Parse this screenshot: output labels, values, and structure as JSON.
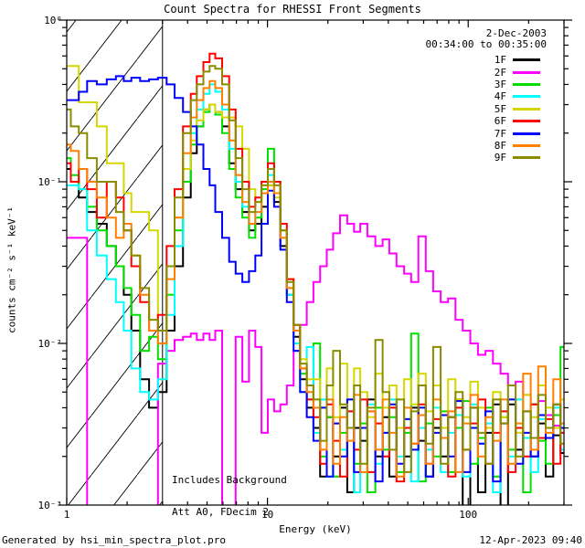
{
  "footer": {
    "left": "Generated by hsi_min_spectra_plot.pro",
    "right": "12-Apr-2023 09:40"
  },
  "chart_data": {
    "type": "line",
    "title": "Count Spectra for RHESSI Front Segments",
    "date_label": "2-Dec-2003",
    "time_range_label": "00:34:00 to 00:35:00",
    "xlabel": "Energy (keV)",
    "ylabel": "counts cm⁻² s⁻¹ keV⁻¹",
    "xscale": "log",
    "yscale": "log",
    "xlim": [
      1,
      300
    ],
    "ylim": [
      0.001,
      1
    ],
    "grid": false,
    "legend_position": "top-right",
    "annotations": [
      "Includes Background",
      "Att A0, FDecim 2"
    ],
    "hatched_region_keV": [
      1,
      3
    ],
    "x_tick_labels": [
      {
        "value": 1,
        "label": "1"
      },
      {
        "value": 10,
        "label": "10"
      },
      {
        "value": 100,
        "label": "100"
      }
    ],
    "y_tick_labels": [
      {
        "value": 1,
        "label": "10⁰"
      },
      {
        "value": 0.1,
        "label": "10⁻¹"
      },
      {
        "value": 0.01,
        "label": "10⁻²"
      },
      {
        "value": 0.001,
        "label": "10⁻³"
      }
    ],
    "energies_keV": [
      1.0,
      1.1,
      1.2,
      1.33,
      1.5,
      1.67,
      1.85,
      2.0,
      2.2,
      2.45,
      2.7,
      3.0,
      3.3,
      3.6,
      4.0,
      4.3,
      4.6,
      5.0,
      5.3,
      5.7,
      6.2,
      6.7,
      7.2,
      7.8,
      8.4,
      9.0,
      9.7,
      10.4,
      11.2,
      12.0,
      13.0,
      14.0,
      15.1,
      16.3,
      17.6,
      19,
      20.5,
      22,
      24,
      26,
      28,
      30,
      33,
      36,
      39,
      42,
      46,
      50,
      54,
      59,
      64,
      70,
      76,
      83,
      90,
      98,
      107,
      117,
      127,
      139,
      151,
      165,
      180,
      196,
      214,
      233,
      254,
      277,
      300
    ],
    "series": [
      {
        "name": "1F",
        "color": "#000000",
        "values": [
          0.12,
          0.1,
          0.08,
          0.065,
          0.055,
          0.04,
          0.03,
          0.02,
          0.012,
          0.006,
          0.004,
          0.005,
          0.012,
          0.03,
          0.08,
          0.15,
          0.22,
          0.28,
          0.3,
          0.27,
          0.22,
          0.13,
          0.09,
          0.065,
          0.05,
          0.055,
          0.07,
          0.095,
          0.075,
          0.04,
          0.02,
          0.011,
          0.006,
          0.004,
          0.003,
          0.0015,
          0.0035,
          0.002,
          0.004,
          0.0012,
          0.003,
          0.0025,
          0.0045,
          0.002,
          0.0035,
          0.0015,
          0.003,
          0.002,
          0.004,
          0.0025,
          0.0015,
          0.003,
          0.002,
          0.0035,
          0.0045,
          0.0007,
          0.004,
          0.0012,
          0.0028,
          0.0042,
          0.0008,
          0.0042,
          0.0022,
          0.0038,
          0.002,
          0.0032,
          0.0015,
          0.0027,
          0.0021
        ]
      },
      {
        "name": "2F",
        "color": "#FF00FF",
        "values": [
          0.045,
          0.045,
          0.045,
          0.0005,
          0.0005,
          0.0005,
          0.0005,
          0.0005,
          0.0005,
          0.0005,
          0.0005,
          0.0075,
          0.009,
          0.0105,
          0.011,
          0.0115,
          0.0105,
          0.0115,
          0.0105,
          0.012,
          0.0008,
          0.0009,
          0.011,
          0.0058,
          0.012,
          0.0095,
          0.0028,
          0.0045,
          0.0038,
          0.0042,
          0.0055,
          0.009,
          0.013,
          0.018,
          0.024,
          0.03,
          0.038,
          0.048,
          0.062,
          0.055,
          0.049,
          0.055,
          0.046,
          0.04,
          0.044,
          0.036,
          0.03,
          0.027,
          0.024,
          0.046,
          0.028,
          0.021,
          0.018,
          0.019,
          0.014,
          0.012,
          0.01,
          0.0085,
          0.009,
          0.0075,
          0.0065,
          0.0055,
          0.0058,
          0.0048,
          0.0042,
          0.0044,
          0.0036,
          0.0031,
          0.0028
        ]
      },
      {
        "name": "3F",
        "color": "#00E100",
        "values": [
          0.14,
          0.11,
          0.09,
          0.07,
          0.05,
          0.04,
          0.03,
          0.022,
          0.015,
          0.009,
          0.011,
          0.008,
          0.02,
          0.05,
          0.1,
          0.17,
          0.22,
          0.27,
          0.3,
          0.26,
          0.2,
          0.12,
          0.08,
          0.06,
          0.045,
          0.06,
          0.09,
          0.16,
          0.1,
          0.05,
          0.022,
          0.012,
          0.0065,
          0.0045,
          0.01,
          0.002,
          0.0035,
          0.0015,
          0.0028,
          0.0045,
          0.0018,
          0.0032,
          0.0012,
          0.004,
          0.0022,
          0.0035,
          0.0016,
          0.0028,
          0.0115,
          0.0014,
          0.0032,
          0.002,
          0.0038,
          0.0016,
          0.003,
          0.0044,
          0.0018,
          0.0026,
          0.004,
          0.0015,
          0.0035,
          0.0022,
          0.003,
          0.0012,
          0.0042,
          0.0025,
          0.0018,
          0.0036,
          0.0095
        ]
      },
      {
        "name": "4F",
        "color": "#00FFFF",
        "values": [
          0.095,
          0.095,
          0.09,
          0.05,
          0.035,
          0.025,
          0.018,
          0.012,
          0.007,
          0.005,
          0.0045,
          0.006,
          0.015,
          0.04,
          0.12,
          0.2,
          0.28,
          0.35,
          0.4,
          0.36,
          0.28,
          0.16,
          0.1,
          0.07,
          0.055,
          0.065,
          0.085,
          0.11,
          0.085,
          0.045,
          0.02,
          0.01,
          0.005,
          0.0095,
          0.0028,
          0.0045,
          0.0015,
          0.0032,
          0.0022,
          0.0038,
          0.0012,
          0.003,
          0.0042,
          0.0018,
          0.0028,
          0.0045,
          0.002,
          0.0034,
          0.0014,
          0.003,
          0.0022,
          0.004,
          0.0016,
          0.0028,
          0.0036,
          0.0015,
          0.0042,
          0.0024,
          0.0032,
          0.0012,
          0.0038,
          0.002,
          0.0045,
          0.0026,
          0.0016,
          0.0034,
          0.0028,
          0.004,
          0.0022
        ]
      },
      {
        "name": "5F",
        "color": "#D6D600",
        "values": [
          0.52,
          0.52,
          0.31,
          0.31,
          0.22,
          0.13,
          0.13,
          0.085,
          0.065,
          0.065,
          0.05,
          0.012,
          0.03,
          0.06,
          0.12,
          0.18,
          0.24,
          0.28,
          0.3,
          0.27,
          0.25,
          0.25,
          0.22,
          0.16,
          0.09,
          0.075,
          0.085,
          0.095,
          0.08,
          0.05,
          0.025,
          0.013,
          0.008,
          0.006,
          0.006,
          0.004,
          0.007,
          0.0035,
          0.0075,
          0.0045,
          0.007,
          0.005,
          0.0035,
          0.0065,
          0.004,
          0.0055,
          0.003,
          0.006,
          0.0042,
          0.0065,
          0.0038,
          0.0055,
          0.003,
          0.006,
          0.0045,
          0.0035,
          0.0058,
          0.004,
          0.003,
          0.005,
          0.0035,
          0.0045,
          0.0028,
          0.0048,
          0.0035,
          0.0055,
          0.004,
          0.003,
          0.0045
        ]
      },
      {
        "name": "6F",
        "color": "#FF0000",
        "values": [
          0.13,
          0.1,
          0.12,
          0.09,
          0.06,
          0.1,
          0.08,
          0.05,
          0.03,
          0.018,
          0.012,
          0.015,
          0.04,
          0.09,
          0.22,
          0.35,
          0.45,
          0.55,
          0.62,
          0.58,
          0.45,
          0.28,
          0.16,
          0.1,
          0.07,
          0.08,
          0.1,
          0.13,
          0.1,
          0.055,
          0.025,
          0.013,
          0.007,
          0.0045,
          0.0035,
          0.0018,
          0.0042,
          0.0025,
          0.0015,
          0.0038,
          0.0022,
          0.0045,
          0.0016,
          0.0032,
          0.002,
          0.004,
          0.0014,
          0.003,
          0.0024,
          0.0042,
          0.0018,
          0.0034,
          0.0026,
          0.0015,
          0.004,
          0.0022,
          0.0032,
          0.0045,
          0.0018,
          0.0028,
          0.0038,
          0.0016,
          0.003,
          0.002,
          0.0042,
          0.0026,
          0.0034,
          0.0018,
          0.0028
        ]
      },
      {
        "name": "7F",
        "color": "#0000FF",
        "values": [
          0.32,
          0.32,
          0.36,
          0.42,
          0.4,
          0.43,
          0.45,
          0.42,
          0.44,
          0.42,
          0.43,
          0.44,
          0.4,
          0.33,
          0.27,
          0.22,
          0.17,
          0.12,
          0.095,
          0.065,
          0.045,
          0.032,
          0.027,
          0.024,
          0.028,
          0.035,
          0.055,
          0.088,
          0.07,
          0.038,
          0.018,
          0.009,
          0.005,
          0.0035,
          0.0025,
          0.004,
          0.0015,
          0.0032,
          0.002,
          0.0045,
          0.0016,
          0.003,
          0.0038,
          0.0014,
          0.0028,
          0.0042,
          0.0018,
          0.0034,
          0.0022,
          0.004,
          0.0015,
          0.0028,
          0.0036,
          0.002,
          0.0044,
          0.0016,
          0.003,
          0.0024,
          0.0038,
          0.0014,
          0.0032,
          0.0045,
          0.0018,
          0.0028,
          0.002,
          0.0036,
          0.0026,
          0.0042,
          0.003
        ]
      },
      {
        "name": "8F",
        "color": "#FF8000",
        "values": [
          0.17,
          0.155,
          0.12,
          0.1,
          0.08,
          0.06,
          0.045,
          0.055,
          0.035,
          0.02,
          0.012,
          0.01,
          0.025,
          0.06,
          0.15,
          0.25,
          0.32,
          0.38,
          0.42,
          0.38,
          0.3,
          0.18,
          0.11,
          0.075,
          0.055,
          0.065,
          0.085,
          0.1,
          0.085,
          0.045,
          0.022,
          0.012,
          0.007,
          0.005,
          0.004,
          0.0022,
          0.0045,
          0.0018,
          0.0035,
          0.0025,
          0.0048,
          0.0016,
          0.0038,
          0.0022,
          0.0045,
          0.0028,
          0.0015,
          0.004,
          0.0024,
          0.0036,
          0.0018,
          0.0045,
          0.0026,
          0.0038,
          0.0016,
          0.0032,
          0.0048,
          0.002,
          0.0035,
          0.0025,
          0.0045,
          0.0018,
          0.0032,
          0.0065,
          0.0022,
          0.0072,
          0.0028,
          0.006,
          0.0032
        ]
      },
      {
        "name": "9F",
        "color": "#8B8B00",
        "values": [
          0.28,
          0.22,
          0.2,
          0.14,
          0.1,
          0.1,
          0.065,
          0.05,
          0.035,
          0.022,
          0.014,
          0.012,
          0.03,
          0.08,
          0.2,
          0.32,
          0.4,
          0.48,
          0.52,
          0.5,
          0.4,
          0.24,
          0.14,
          0.09,
          0.065,
          0.075,
          0.095,
          0.12,
          0.095,
          0.05,
          0.024,
          0.013,
          0.0075,
          0.0055,
          0.0045,
          0.0025,
          0.0055,
          0.009,
          0.0042,
          0.003,
          0.0055,
          0.0018,
          0.004,
          0.0105,
          0.005,
          0.0022,
          0.0045,
          0.0016,
          0.0038,
          0.0055,
          0.0024,
          0.0095,
          0.0018,
          0.0035,
          0.005,
          0.0022,
          0.004,
          0.0028,
          0.0018,
          0.0045,
          0.0032,
          0.0055,
          0.002,
          0.0038,
          0.0026,
          0.0048,
          0.003,
          0.0042,
          0.0024
        ]
      }
    ]
  }
}
